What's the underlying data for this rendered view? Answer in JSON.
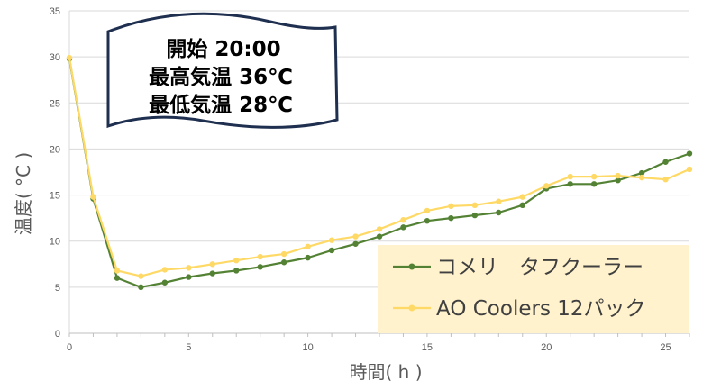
{
  "chart_data": {
    "type": "line",
    "title": "",
    "xlabel": "時間( h )",
    "ylabel": "温度( °C )",
    "xlim": [
      0,
      26
    ],
    "ylim": [
      0,
      35
    ],
    "xticks": [
      0,
      5,
      10,
      15,
      20,
      25
    ],
    "yticks": [
      0,
      5,
      10,
      15,
      20,
      25,
      30,
      35
    ],
    "grid": "horizontal",
    "legend_position": "bottom-right",
    "annotation_lines": [
      "開始 20:00",
      "最高気温 36℃",
      "最低気温 28℃"
    ],
    "x": [
      0,
      1,
      2,
      3,
      4,
      5,
      6,
      7,
      8,
      9,
      10,
      11,
      12,
      13,
      14,
      15,
      16,
      17,
      18,
      19,
      20,
      21,
      22,
      23,
      24,
      25,
      26
    ],
    "series": [
      {
        "name": "コメリ　タフクーラー",
        "color": "#548235",
        "values": [
          29.8,
          14.6,
          6.0,
          5.0,
          5.5,
          6.1,
          6.5,
          6.8,
          7.2,
          7.7,
          8.2,
          9.0,
          9.7,
          10.5,
          11.5,
          12.2,
          12.5,
          12.8,
          13.1,
          13.9,
          15.7,
          16.2,
          16.2,
          16.6,
          17.4,
          18.6,
          19.5
        ]
      },
      {
        "name": "AO Coolers 12パック",
        "color": "#FFD966",
        "values": [
          29.9,
          14.8,
          6.8,
          6.2,
          6.9,
          7.1,
          7.5,
          7.9,
          8.3,
          8.6,
          9.4,
          10.1,
          10.5,
          11.3,
          12.3,
          13.3,
          13.8,
          13.9,
          14.3,
          14.8,
          16.0,
          17.0,
          17.0,
          17.1,
          16.9,
          16.7,
          17.8
        ]
      }
    ]
  },
  "colors": {
    "grid": "#D9D9D9",
    "legend_bg": "#FFF2CC",
    "banner_border": "#1F2F4F"
  }
}
